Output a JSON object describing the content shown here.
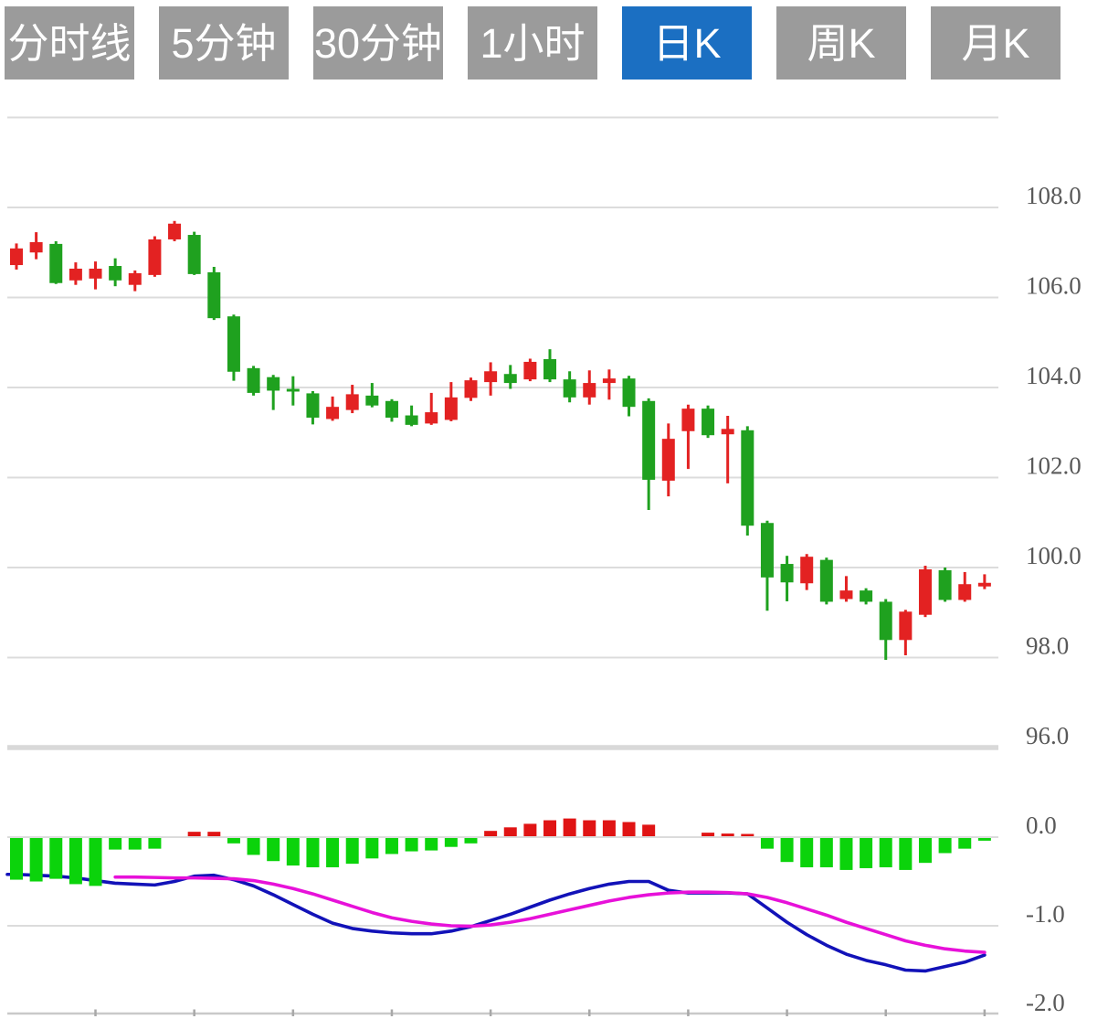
{
  "toolbar": {
    "tabs": [
      {
        "label": "分时线",
        "active": false
      },
      {
        "label": "5分钟",
        "active": false
      },
      {
        "label": "30分钟",
        "active": false
      },
      {
        "label": "1小时",
        "active": false
      },
      {
        "label": "日K",
        "active": true
      },
      {
        "label": "周K",
        "active": false
      },
      {
        "label": "月K",
        "active": false
      }
    ],
    "active_bg": "#1b6fc2",
    "inactive_bg": "#9b9b9b"
  },
  "chart_data": {
    "type": "candlestick",
    "panes": [
      "price",
      "macd"
    ],
    "title": "",
    "legend": [],
    "grid": true,
    "price_axis": {
      "side": "right",
      "tick_values": [
        108,
        106,
        104,
        102,
        100,
        98,
        96
      ],
      "tick_labels": [
        "108.0",
        "106.0",
        "104.0",
        "102.0",
        "100.0",
        "98.0",
        "96.0"
      ],
      "top_grid_value": 110,
      "thick_grid_value": 96,
      "range": [
        95.5,
        110.5
      ]
    },
    "macd_axis": {
      "side": "right",
      "tick_values": [
        0,
        -1,
        -2
      ],
      "tick_labels": [
        "0.0",
        "-1.0",
        "-2.0"
      ],
      "range": [
        -2.0,
        0.3
      ]
    },
    "x_axis": {
      "tick_every": 5,
      "first_tick_index": 4,
      "num_candles": 50
    },
    "colors": {
      "up": "#e32222",
      "down": "#1fa11f",
      "hist_up": "#e01414",
      "hist_down": "#0bd30b",
      "dif_line": "#1212b8",
      "dea_line": "#e711d9",
      "grid": "#dcdcdc",
      "grid_thick": "#d9d9d9",
      "axis": "#c9c9c9",
      "axis_tick": "#a8a8a8",
      "label": "#595959"
    },
    "candles_format": [
      "open",
      "high",
      "low",
      "close"
    ],
    "candles": [
      [
        106.72,
        107.2,
        106.62,
        107.09
      ],
      [
        107.0,
        107.45,
        106.85,
        107.23
      ],
      [
        107.19,
        107.25,
        106.3,
        106.32
      ],
      [
        106.38,
        106.78,
        106.28,
        106.64
      ],
      [
        106.42,
        106.8,
        106.18,
        106.64
      ],
      [
        106.7,
        106.87,
        106.25,
        106.38
      ],
      [
        106.28,
        106.6,
        106.14,
        106.54
      ],
      [
        106.5,
        107.36,
        106.46,
        107.29
      ],
      [
        107.29,
        107.7,
        107.25,
        107.64
      ],
      [
        107.39,
        107.46,
        106.5,
        106.52
      ],
      [
        106.56,
        106.68,
        105.5,
        105.54
      ],
      [
        105.58,
        105.62,
        104.15,
        104.35
      ],
      [
        104.43,
        104.48,
        103.82,
        103.88
      ],
      [
        104.23,
        104.28,
        103.5,
        103.93
      ],
      [
        103.97,
        104.25,
        103.6,
        103.92
      ],
      [
        103.87,
        103.92,
        103.18,
        103.33
      ],
      [
        103.3,
        103.8,
        103.26,
        103.57
      ],
      [
        103.5,
        104.06,
        103.43,
        103.85
      ],
      [
        103.82,
        104.1,
        103.56,
        103.6
      ],
      [
        103.7,
        103.74,
        103.24,
        103.33
      ],
      [
        103.38,
        103.6,
        103.14,
        103.17
      ],
      [
        103.2,
        103.88,
        103.17,
        103.45
      ],
      [
        103.28,
        104.12,
        103.25,
        103.78
      ],
      [
        103.77,
        104.22,
        103.7,
        104.16
      ],
      [
        104.12,
        104.56,
        103.82,
        104.36
      ],
      [
        104.3,
        104.5,
        103.97,
        104.1
      ],
      [
        104.18,
        104.64,
        104.14,
        104.57
      ],
      [
        104.63,
        104.85,
        104.12,
        104.18
      ],
      [
        104.18,
        104.36,
        103.67,
        103.78
      ],
      [
        103.78,
        104.38,
        103.62,
        104.1
      ],
      [
        104.1,
        104.4,
        103.73,
        104.2
      ],
      [
        104.2,
        104.26,
        103.36,
        103.57
      ],
      [
        103.7,
        103.76,
        101.28,
        101.95
      ],
      [
        101.93,
        103.2,
        101.58,
        102.86
      ],
      [
        103.03,
        103.62,
        102.19,
        103.53
      ],
      [
        103.53,
        103.6,
        102.88,
        102.94
      ],
      [
        102.96,
        103.37,
        101.87,
        103.08
      ],
      [
        103.05,
        103.14,
        100.71,
        100.93
      ],
      [
        100.99,
        101.04,
        99.04,
        99.78
      ],
      [
        100.08,
        100.26,
        99.25,
        99.67
      ],
      [
        99.65,
        100.3,
        99.5,
        100.24
      ],
      [
        100.17,
        100.22,
        99.18,
        99.24
      ],
      [
        99.3,
        99.81,
        99.24,
        99.49
      ],
      [
        99.49,
        99.54,
        99.18,
        99.24
      ],
      [
        99.24,
        99.3,
        97.95,
        98.39
      ],
      [
        98.39,
        99.06,
        98.05,
        99.02
      ],
      [
        98.95,
        100.04,
        98.9,
        99.96
      ],
      [
        99.94,
        100.0,
        99.24,
        99.28
      ],
      [
        99.28,
        99.9,
        99.24,
        99.63
      ],
      [
        99.58,
        99.85,
        99.52,
        99.66
      ]
    ],
    "macd": {
      "histogram": [
        -0.47,
        -0.49,
        -0.46,
        -0.52,
        -0.54,
        -0.13,
        -0.13,
        -0.12,
        0.0,
        0.05,
        0.05,
        -0.06,
        -0.19,
        -0.26,
        -0.31,
        -0.33,
        -0.33,
        -0.29,
        -0.23,
        -0.18,
        -0.15,
        -0.14,
        -0.1,
        -0.06,
        0.06,
        0.1,
        0.14,
        0.18,
        0.2,
        0.18,
        0.18,
        0.16,
        0.13,
        0.0,
        0.0,
        0.04,
        0.03,
        0.02,
        -0.12,
        -0.27,
        -0.33,
        -0.33,
        -0.36,
        -0.34,
        -0.33,
        -0.36,
        -0.28,
        -0.17,
        -0.12,
        -0.03
      ],
      "dif": [
        -0.42,
        -0.43,
        -0.44,
        -0.46,
        -0.49,
        -0.52,
        -0.53,
        -0.54,
        -0.5,
        -0.44,
        -0.43,
        -0.48,
        -0.55,
        -0.65,
        -0.76,
        -0.87,
        -0.97,
        -1.03,
        -1.06,
        -1.08,
        -1.09,
        -1.09,
        -1.06,
        -1.01,
        -0.94,
        -0.87,
        -0.79,
        -0.71,
        -0.64,
        -0.58,
        -0.53,
        -0.5,
        -0.5,
        -0.6,
        -0.63,
        -0.63,
        -0.63,
        -0.64,
        -0.8,
        -0.96,
        -1.1,
        -1.22,
        -1.32,
        -1.39,
        -1.44,
        -1.5,
        -1.51,
        -1.46,
        -1.41,
        -1.33
      ],
      "dea": [
        null,
        null,
        null,
        null,
        null,
        -0.45,
        -0.45,
        -0.455,
        -0.46,
        -0.46,
        -0.465,
        -0.47,
        -0.49,
        -0.53,
        -0.58,
        -0.64,
        -0.71,
        -0.78,
        -0.85,
        -0.91,
        -0.95,
        -0.98,
        -1.0,
        -1.005,
        -0.99,
        -0.96,
        -0.92,
        -0.87,
        -0.82,
        -0.77,
        -0.72,
        -0.68,
        -0.65,
        -0.63,
        -0.62,
        -0.62,
        -0.625,
        -0.64,
        -0.68,
        -0.74,
        -0.81,
        -0.88,
        -0.96,
        -1.03,
        -1.1,
        -1.17,
        -1.22,
        -1.26,
        -1.285,
        -1.3
      ]
    }
  }
}
